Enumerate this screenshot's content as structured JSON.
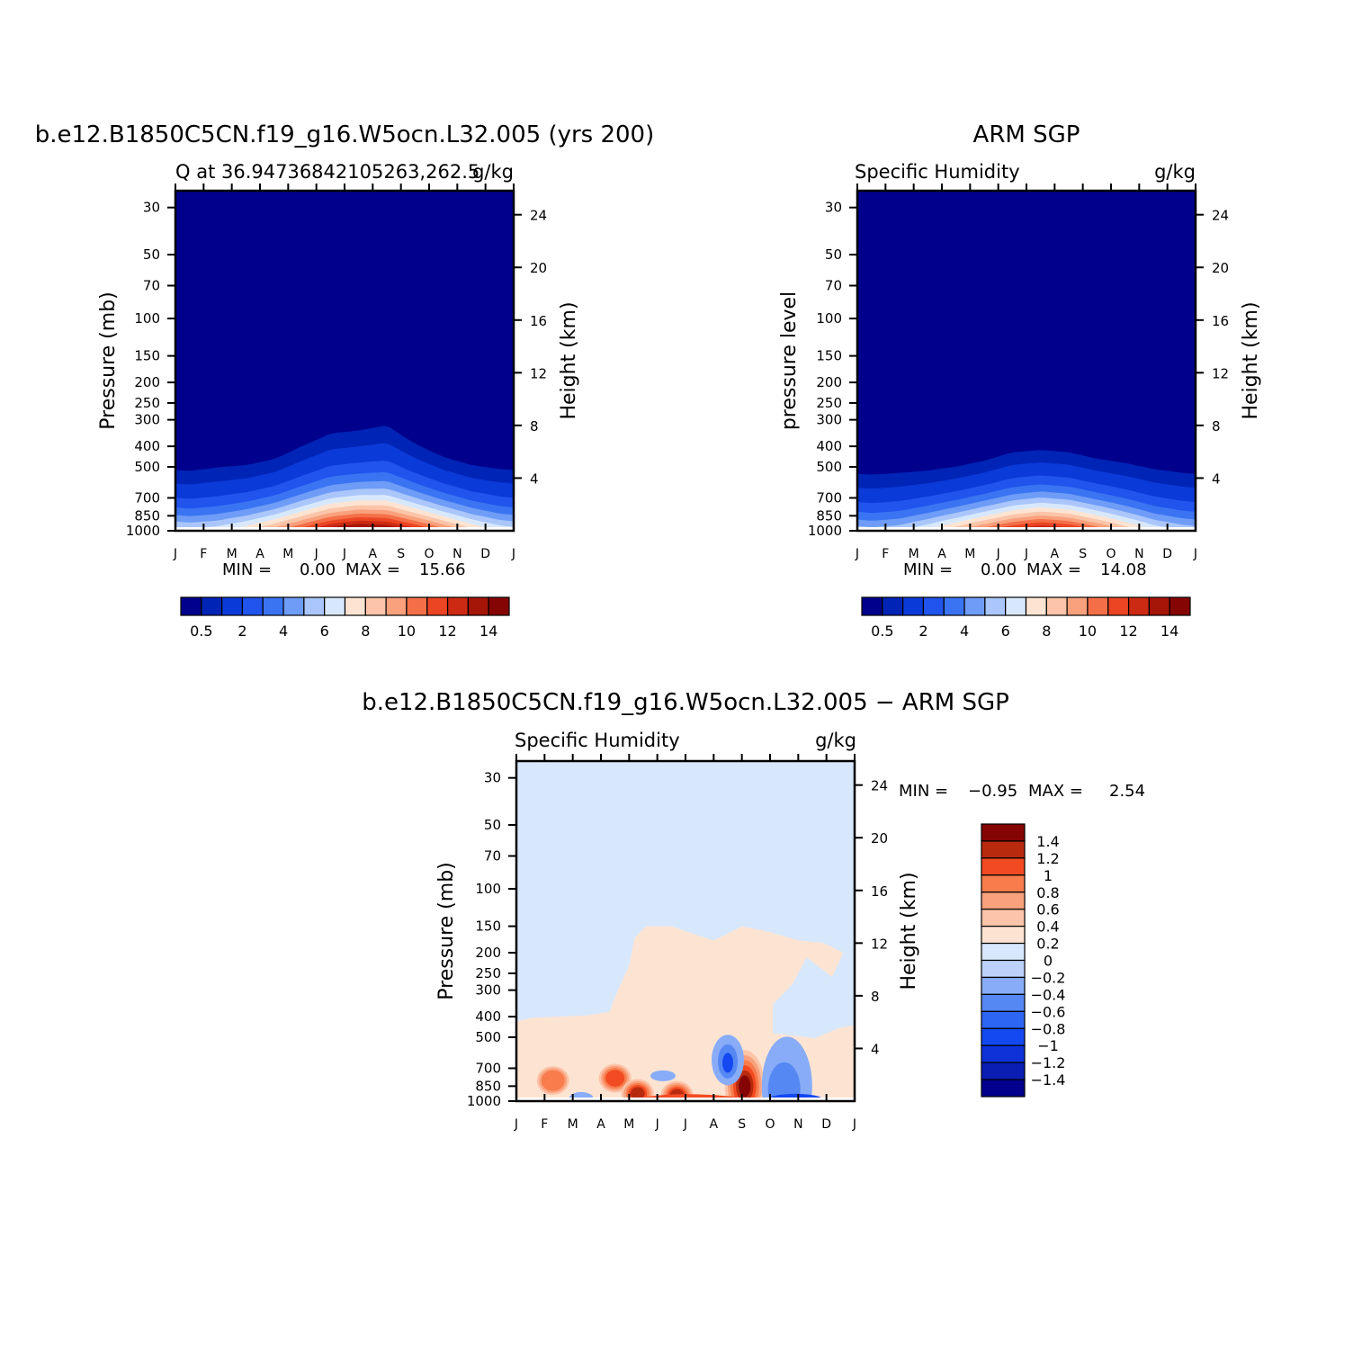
{
  "chart_data": [
    {
      "type": "heatmap",
      "title": "b.e12.B1850C5CN.f19_g16.W5ocn.L32.005 (yrs 200)",
      "subtitle_left": "Q at 36.94736842105263,262.5",
      "subtitle_right": "g/kg",
      "xlabel": "",
      "ylabel": "Pressure (mb)",
      "ylabel_right": "Height (km)",
      "x_ticks": [
        "J",
        "F",
        "M",
        "A",
        "M",
        "J",
        "J",
        "A",
        "S",
        "O",
        "N",
        "D",
        "J"
      ],
      "y_ticks": [
        30,
        50,
        70,
        100,
        150,
        200,
        250,
        300,
        400,
        500,
        700,
        850,
        1000
      ],
      "y_scale": "log",
      "ylim": [
        1000,
        25
      ],
      "height_ticks": [
        4,
        8,
        12,
        16,
        20,
        24
      ],
      "min_label": "MIN =",
      "min_value": "0.00",
      "max_label": "MAX =",
      "max_value": "15.66",
      "field_min": 0.0,
      "field_max": 15.66,
      "colorbar_ticks": [
        "0.5",
        "2",
        "4",
        "6",
        "8",
        "10",
        "12",
        "14"
      ],
      "contour_levels": [
        0.5,
        1,
        2,
        3,
        4,
        5,
        6,
        7,
        8,
        9,
        10,
        11,
        12,
        13,
        14
      ],
      "colors": [
        "#00008c",
        "#0024b5",
        "#0a3ad8",
        "#2054ec",
        "#3a74f2",
        "#6e9cf6",
        "#aac6fa",
        "#d8e8fc",
        "#fde4d2",
        "#fcc4a8",
        "#f9a07c",
        "#f46f48",
        "#eb4524",
        "#cc2a12",
        "#a51508",
        "#850504"
      ],
      "x_months": [
        0.5,
        1.5,
        2.5,
        3.5,
        4.5,
        5.5,
        6.5,
        7.5,
        8.5,
        9.5,
        10.5,
        11.5
      ],
      "surface_q": [
        6.5,
        6.9,
        8.1,
        9.8,
        12.0,
        14.2,
        15.4,
        14.9,
        13.0,
        10.8,
        8.6,
        7.1
      ],
      "top_05_pressure_mb": [
        500,
        480,
        470,
        440,
        380,
        330,
        320,
        300,
        370,
        430,
        470,
        490
      ]
    },
    {
      "type": "heatmap",
      "title": "ARM SGP",
      "subtitle_left": "Specific Humidity",
      "subtitle_right": "g/kg",
      "xlabel": "",
      "ylabel": "pressure level",
      "ylabel_right": "Height (km)",
      "x_ticks": [
        "J",
        "F",
        "M",
        "A",
        "M",
        "J",
        "J",
        "A",
        "S",
        "O",
        "N",
        "D",
        "J"
      ],
      "y_ticks": [
        30,
        50,
        70,
        100,
        150,
        200,
        250,
        300,
        400,
        500,
        700,
        850,
        1000
      ],
      "y_scale": "log",
      "ylim": [
        1000,
        25
      ],
      "height_ticks": [
        4,
        8,
        12,
        16,
        20,
        24
      ],
      "min_label": "MIN =",
      "min_value": "0.00",
      "max_label": "MAX =",
      "max_value": "14.08",
      "field_min": 0.0,
      "field_max": 14.08,
      "colorbar_ticks": [
        "0.5",
        "2",
        "4",
        "6",
        "8",
        "10",
        "12",
        "14"
      ],
      "contour_levels": [
        0.5,
        1,
        2,
        3,
        4,
        5,
        6,
        7,
        8,
        9,
        10,
        11,
        12,
        13,
        14
      ],
      "colors": [
        "#00008c",
        "#0024b5",
        "#0a3ad8",
        "#2054ec",
        "#3a74f2",
        "#6e9cf6",
        "#aac6fa",
        "#d8e8fc",
        "#fde4d2",
        "#fcc4a8",
        "#f9a07c",
        "#f46f48",
        "#eb4524",
        "#cc2a12",
        "#a51508",
        "#850504"
      ],
      "x_months": [
        0.5,
        1.5,
        2.5,
        3.5,
        4.5,
        5.5,
        6.5,
        7.5,
        8.5,
        9.5,
        10.5,
        11.5
      ],
      "surface_q": [
        5.6,
        6.0,
        7.4,
        9.1,
        11.0,
        12.8,
        14.0,
        13.2,
        11.3,
        9.2,
        7.2,
        6.1
      ],
      "top_05_pressure_mb": [
        520,
        510,
        500,
        480,
        450,
        410,
        400,
        410,
        440,
        460,
        490,
        510
      ]
    },
    {
      "type": "heatmap",
      "title": "b.e12.B1850C5CN.f19_g16.W5ocn.L32.005 − ARM SGP",
      "subtitle_left": "Specific Humidity",
      "subtitle_right": "g/kg",
      "xlabel": "",
      "ylabel": "Pressure (mb)",
      "ylabel_right": "Height (km)",
      "x_ticks": [
        "J",
        "F",
        "M",
        "A",
        "M",
        "J",
        "J",
        "A",
        "S",
        "O",
        "N",
        "D",
        "J"
      ],
      "y_ticks": [
        30,
        50,
        70,
        100,
        150,
        200,
        250,
        300,
        400,
        500,
        700,
        850,
        1000
      ],
      "y_scale": "log",
      "ylim": [
        1000,
        25
      ],
      "height_ticks": [
        4,
        8,
        12,
        16,
        20,
        24
      ],
      "min_label": "MIN =",
      "min_value": "−0.95",
      "max_label": "MAX =",
      "max_value": "2.54",
      "field_min": -0.95,
      "field_max": 2.54,
      "colorbar_ticks": [
        "1.4",
        "1.2",
        "1",
        "0.8",
        "0.6",
        "0.4",
        "0.2",
        "0",
        "−0.2",
        "−0.4",
        "−0.6",
        "−0.8",
        "−1",
        "−1.2",
        "−1.4"
      ],
      "contour_levels": [
        -1.4,
        -1.2,
        -1.0,
        -0.8,
        -0.6,
        -0.4,
        -0.2,
        0,
        0.2,
        0.4,
        0.6,
        0.8,
        1.0,
        1.2,
        1.4
      ],
      "colors": [
        "#00008c",
        "#0a1eb4",
        "#0e32d8",
        "#1448f0",
        "#2c66f2",
        "#5688f4",
        "#88acf8",
        "#bcd2fb",
        "#d8e8fc",
        "#fde4d2",
        "#fcc4a8",
        "#f9a07c",
        "#f87c4c",
        "#f24a22",
        "#b82a0e",
        "#850504"
      ],
      "anomaly_regions": [
        {
          "month": 1.3,
          "p_mb": 800,
          "value": 1.0
        },
        {
          "month": 3.5,
          "p_mb": 780,
          "value": 1.2
        },
        {
          "month": 4.3,
          "p_mb": 920,
          "value": 1.3
        },
        {
          "month": 5.7,
          "p_mb": 940,
          "value": 1.3
        },
        {
          "month": 7.5,
          "p_mb": 620,
          "value": -0.95
        },
        {
          "month": 8.1,
          "p_mb": 850,
          "value": 2.54
        },
        {
          "month": 9.8,
          "p_mb": 920,
          "value": -0.9
        },
        {
          "month": 6.7,
          "p_mb": 350,
          "value": 0.4
        }
      ]
    }
  ]
}
